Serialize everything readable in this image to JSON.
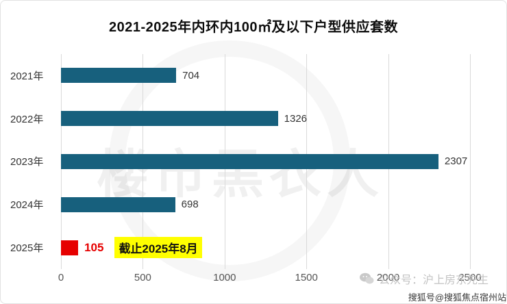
{
  "chart_data": {
    "type": "bar",
    "orientation": "horizontal",
    "title": "2021-2025年内环内100㎡及以下户型供应套数",
    "categories": [
      "2021年",
      "2022年",
      "2023年",
      "2024年",
      "2025年"
    ],
    "values": [
      704,
      1326,
      2307,
      698,
      105
    ],
    "xlim": [
      0,
      2500
    ],
    "xticks": [
      0,
      500,
      1000,
      1500,
      2000,
      2500
    ],
    "bar_color": "#17607d",
    "highlight_color": "#e60000",
    "highlight_index": 4,
    "annotation": {
      "row": 4,
      "text": "截止2025年8月",
      "bg": "#ffff00"
    },
    "grid": true,
    "legend": "none"
  },
  "watermarks": {
    "center": "楼市黑衣人",
    "wechat": "公众号：沪上房东先生",
    "corner": "搜狐号@搜狐焦点宿州站"
  }
}
